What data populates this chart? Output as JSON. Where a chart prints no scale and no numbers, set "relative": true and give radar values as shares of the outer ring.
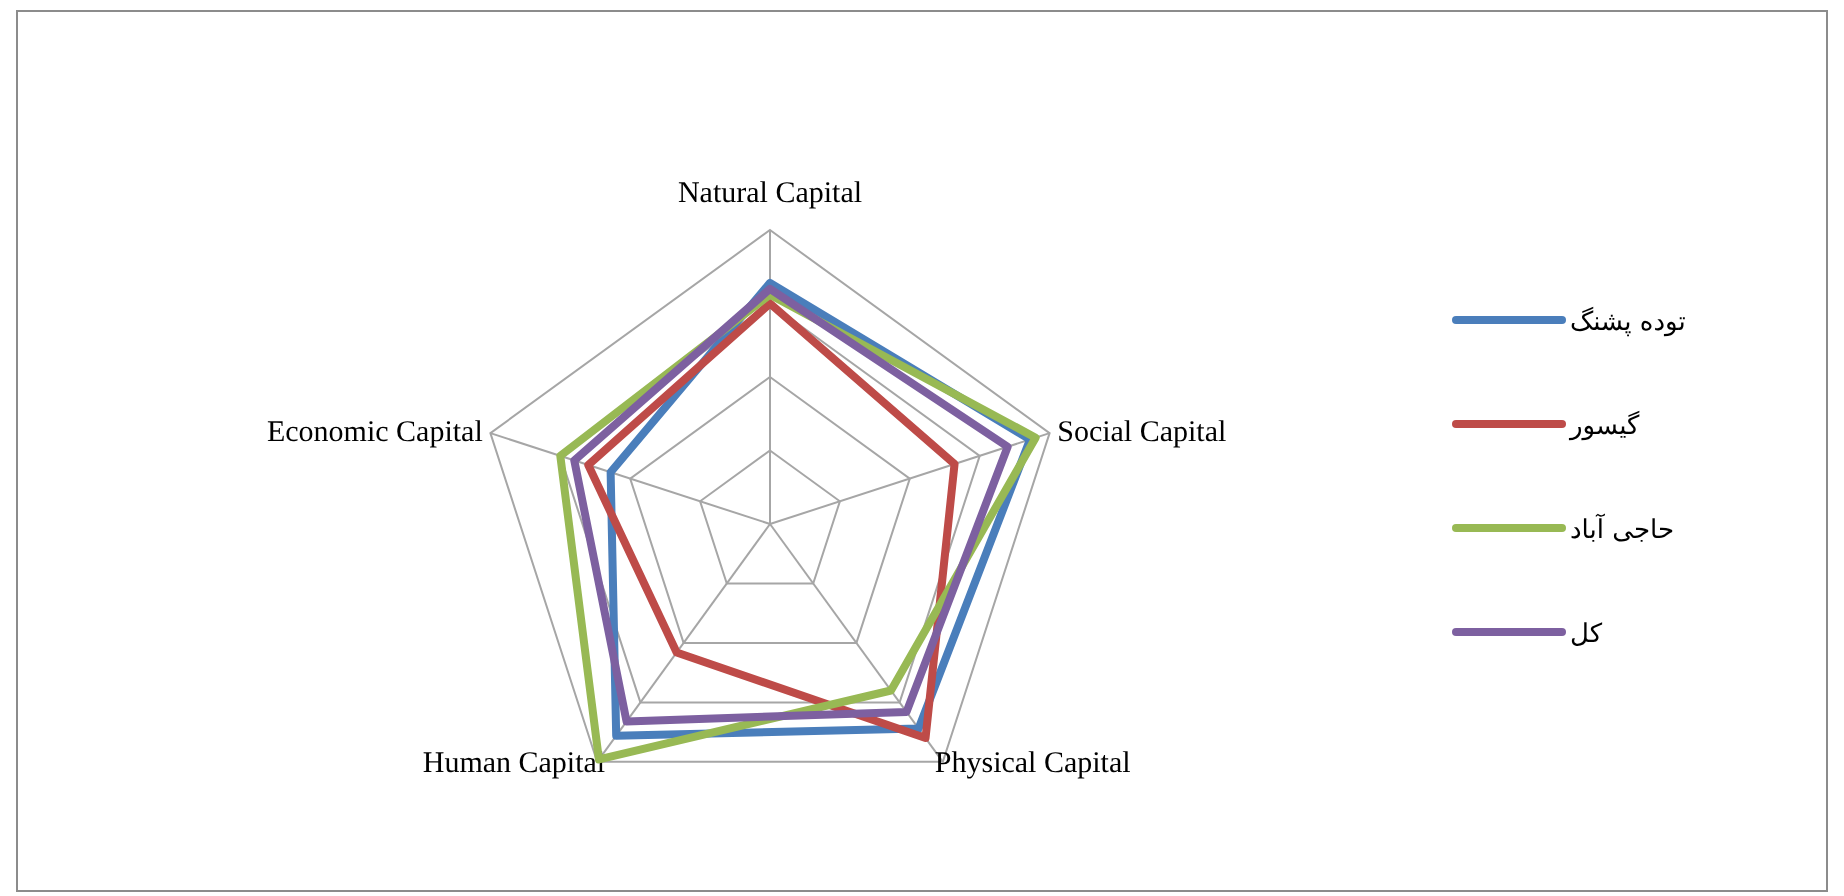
{
  "chart_data": {
    "type": "radar",
    "relative": true,
    "grid": true,
    "legend": "right",
    "categories": [
      "Natural Capital",
      "Social Capital",
      "Physical Capital",
      "Human Capital",
      "Economic Capital"
    ],
    "series": [
      {
        "name": "توده پشنگ",
        "color": "#4a7ebb",
        "values": [
          0.82,
          0.93,
          0.86,
          0.89,
          0.57
        ]
      },
      {
        "name": "گیسور",
        "color": "#be4b48",
        "values": [
          0.75,
          0.66,
          0.9,
          0.54,
          0.65
        ]
      },
      {
        "name": "حاجی آباد",
        "color": "#98b954",
        "values": [
          0.78,
          0.95,
          0.7,
          0.99,
          0.75
        ]
      },
      {
        "name": "کل",
        "color": "#7d60a0",
        "values": [
          0.8,
          0.85,
          0.79,
          0.83,
          0.7
        ]
      }
    ]
  }
}
